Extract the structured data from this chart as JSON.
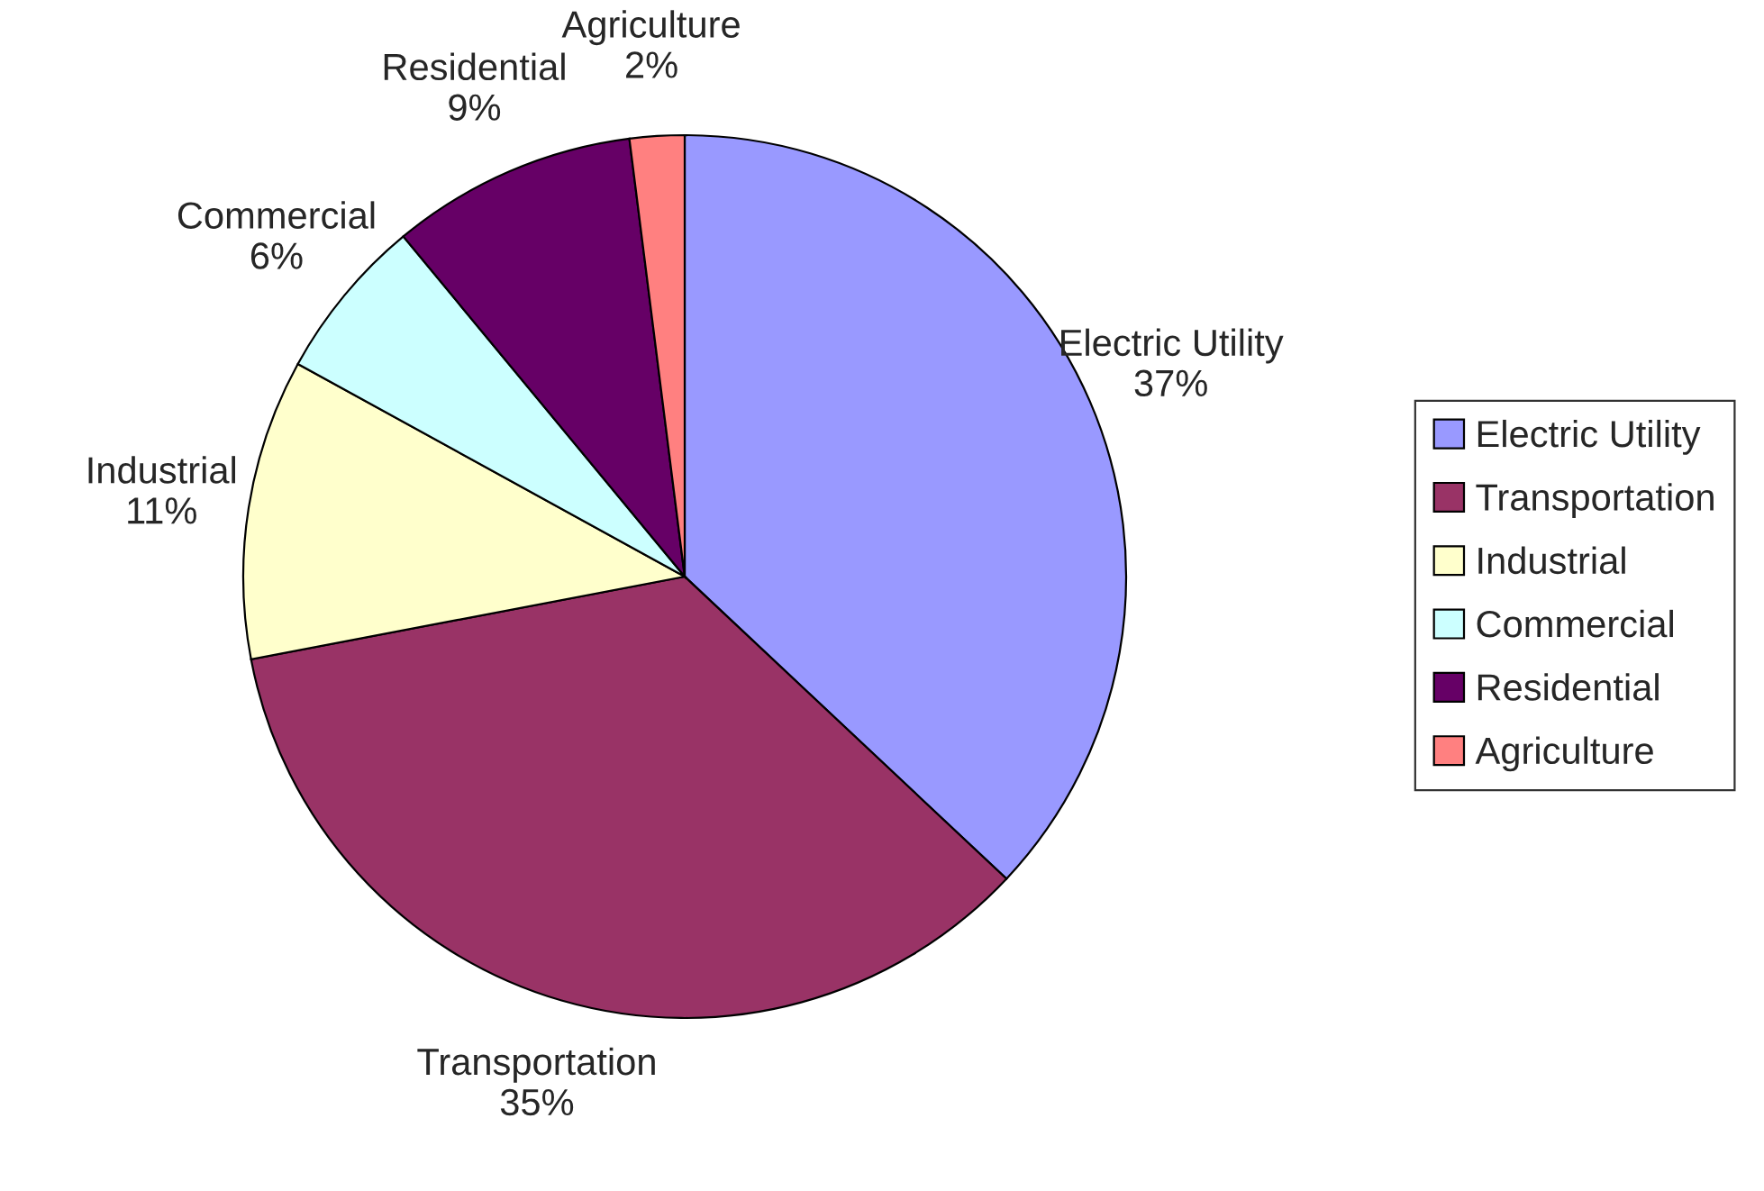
{
  "chart_data": {
    "type": "pie",
    "categories": [
      "Electric Utility",
      "Transportation",
      "Industrial",
      "Commercial",
      "Residential",
      "Agriculture"
    ],
    "values": [
      37,
      35,
      11,
      6,
      9,
      2
    ],
    "value_labels": [
      "37%",
      "35%",
      "11%",
      "6%",
      "9%",
      "2%"
    ],
    "colors": [
      "#9999ff",
      "#993366",
      "#ffffcc",
      "#ccffff",
      "#660066",
      "#ff8080"
    ],
    "legend": "right"
  }
}
